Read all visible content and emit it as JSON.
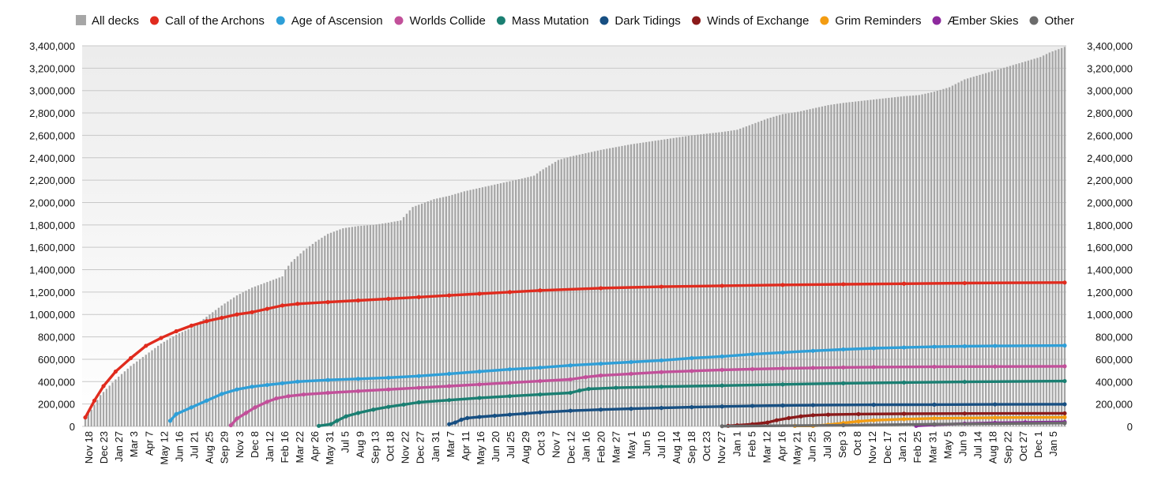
{
  "chart_data": {
    "type": "bar",
    "x_ticks": [
      "Nov 18",
      "Dec 23",
      "Jan 27",
      "Mar 3",
      "Apr 7",
      "May 12",
      "Jun 16",
      "Jul 21",
      "Aug 25",
      "Sep 29",
      "Nov 3",
      "Dec 8",
      "Jan 12",
      "Feb 16",
      "Mar 22",
      "Apr 26",
      "May 31",
      "Jul 5",
      "Aug 9",
      "Sep 13",
      "Oct 18",
      "Nov 22",
      "Dec 27",
      "Jan 31",
      "Mar 7",
      "Apr 11",
      "May 16",
      "Jun 20",
      "Jul 25",
      "Aug 29",
      "Oct 3",
      "Nov 7",
      "Dec 12",
      "Jan 16",
      "Feb 20",
      "Mar 27",
      "May 1",
      "Jun 5",
      "Jul 10",
      "Aug 14",
      "Sep 18",
      "Oct 23",
      "Nov 27",
      "Jan 1",
      "Feb 5",
      "Mar 12",
      "Apr 16",
      "May 21",
      "Jun 25",
      "Jul 30",
      "Sep 3",
      "Oct 8",
      "Nov 12",
      "Dec 17",
      "Jan 21",
      "Feb 25",
      "Mar 31",
      "May 5",
      "Jun 9",
      "Jul 14",
      "Aug 18",
      "Sep 22",
      "Oct 27",
      "Dec 1",
      "Jan 5"
    ],
    "y_ticks": [
      "0",
      "200,000",
      "400,000",
      "600,000",
      "800,000",
      "1,000,000",
      "1,200,000",
      "1,400,000",
      "1,600,000",
      "1,800,000",
      "2,000,000",
      "2,200,000",
      "2,400,000",
      "2,600,000",
      "2,800,000",
      "3,000,000",
      "3,200,000",
      "3,400,000"
    ],
    "ylim": [
      0,
      3400000
    ],
    "x_week_range": [
      0,
      323
    ],
    "grid": true,
    "legend_position": "top",
    "series": [
      {
        "name": "All decks",
        "kind": "bar",
        "color": "#a6a6a6",
        "points": [
          [
            0,
            80000
          ],
          [
            2,
            150000
          ],
          [
            5,
            280000
          ],
          [
            10,
            420000
          ],
          [
            15,
            540000
          ],
          [
            20,
            640000
          ],
          [
            25,
            740000
          ],
          [
            30,
            820000
          ],
          [
            35,
            880000
          ],
          [
            40,
            980000
          ],
          [
            45,
            1080000
          ],
          [
            50,
            1170000
          ],
          [
            55,
            1240000
          ],
          [
            60,
            1290000
          ],
          [
            65,
            1340000
          ],
          [
            66,
            1400000
          ],
          [
            68,
            1470000
          ],
          [
            72,
            1570000
          ],
          [
            76,
            1650000
          ],
          [
            80,
            1720000
          ],
          [
            85,
            1770000
          ],
          [
            90,
            1790000
          ],
          [
            95,
            1800000
          ],
          [
            100,
            1820000
          ],
          [
            104,
            1840000
          ],
          [
            106,
            1900000
          ],
          [
            108,
            1960000
          ],
          [
            112,
            2000000
          ],
          [
            115,
            2030000
          ],
          [
            120,
            2060000
          ],
          [
            125,
            2100000
          ],
          [
            130,
            2130000
          ],
          [
            135,
            2160000
          ],
          [
            140,
            2190000
          ],
          [
            145,
            2220000
          ],
          [
            148,
            2240000
          ],
          [
            150,
            2280000
          ],
          [
            153,
            2330000
          ],
          [
            156,
            2380000
          ],
          [
            160,
            2410000
          ],
          [
            165,
            2440000
          ],
          [
            170,
            2470000
          ],
          [
            180,
            2520000
          ],
          [
            190,
            2560000
          ],
          [
            200,
            2600000
          ],
          [
            210,
            2630000
          ],
          [
            215,
            2650000
          ],
          [
            220,
            2700000
          ],
          [
            225,
            2750000
          ],
          [
            230,
            2790000
          ],
          [
            235,
            2810000
          ],
          [
            240,
            2840000
          ],
          [
            245,
            2870000
          ],
          [
            250,
            2890000
          ],
          [
            260,
            2920000
          ],
          [
            270,
            2950000
          ],
          [
            275,
            2960000
          ],
          [
            280,
            2990000
          ],
          [
            285,
            3030000
          ],
          [
            290,
            3100000
          ],
          [
            295,
            3140000
          ],
          [
            300,
            3180000
          ],
          [
            305,
            3220000
          ],
          [
            310,
            3260000
          ],
          [
            315,
            3300000
          ],
          [
            318,
            3340000
          ],
          [
            323,
            3390000
          ]
        ]
      },
      {
        "name": "Call of the Archons",
        "kind": "line",
        "color": "#e02b1e",
        "points": [
          [
            0,
            80000
          ],
          [
            3,
            230000
          ],
          [
            6,
            360000
          ],
          [
            10,
            490000
          ],
          [
            15,
            610000
          ],
          [
            20,
            720000
          ],
          [
            25,
            790000
          ],
          [
            30,
            850000
          ],
          [
            35,
            900000
          ],
          [
            40,
            940000
          ],
          [
            45,
            970000
          ],
          [
            50,
            1000000
          ],
          [
            55,
            1020000
          ],
          [
            60,
            1050000
          ],
          [
            65,
            1080000
          ],
          [
            70,
            1095000
          ],
          [
            80,
            1110000
          ],
          [
            90,
            1125000
          ],
          [
            100,
            1140000
          ],
          [
            110,
            1155000
          ],
          [
            120,
            1170000
          ],
          [
            130,
            1185000
          ],
          [
            140,
            1200000
          ],
          [
            150,
            1215000
          ],
          [
            170,
            1235000
          ],
          [
            190,
            1248000
          ],
          [
            210,
            1256000
          ],
          [
            230,
            1264000
          ],
          [
            250,
            1270000
          ],
          [
            270,
            1275000
          ],
          [
            290,
            1280000
          ],
          [
            323,
            1285000
          ]
        ]
      },
      {
        "name": "Age of Ascension",
        "kind": "line",
        "color": "#2e9fd8",
        "points": [
          [
            28,
            50000
          ],
          [
            30,
            110000
          ],
          [
            35,
            170000
          ],
          [
            40,
            230000
          ],
          [
            45,
            290000
          ],
          [
            50,
            330000
          ],
          [
            55,
            355000
          ],
          [
            60,
            370000
          ],
          [
            65,
            385000
          ],
          [
            70,
            400000
          ],
          [
            80,
            415000
          ],
          [
            90,
            425000
          ],
          [
            100,
            435000
          ],
          [
            110,
            450000
          ],
          [
            120,
            470000
          ],
          [
            130,
            490000
          ],
          [
            140,
            510000
          ],
          [
            150,
            525000
          ],
          [
            160,
            545000
          ],
          [
            170,
            560000
          ],
          [
            180,
            575000
          ],
          [
            190,
            590000
          ],
          [
            200,
            610000
          ],
          [
            210,
            625000
          ],
          [
            220,
            645000
          ],
          [
            230,
            660000
          ],
          [
            240,
            675000
          ],
          [
            250,
            688000
          ],
          [
            260,
            698000
          ],
          [
            270,
            705000
          ],
          [
            280,
            712000
          ],
          [
            290,
            716000
          ],
          [
            300,
            719000
          ],
          [
            323,
            722000
          ]
        ]
      },
      {
        "name": "Worlds Collide",
        "kind": "line",
        "color": "#c2509a",
        "points": [
          [
            48,
            10000
          ],
          [
            50,
            70000
          ],
          [
            53,
            120000
          ],
          [
            56,
            170000
          ],
          [
            60,
            220000
          ],
          [
            63,
            250000
          ],
          [
            67,
            270000
          ],
          [
            72,
            285000
          ],
          [
            80,
            300000
          ],
          [
            90,
            315000
          ],
          [
            100,
            330000
          ],
          [
            110,
            345000
          ],
          [
            120,
            360000
          ],
          [
            130,
            375000
          ],
          [
            140,
            390000
          ],
          [
            150,
            405000
          ],
          [
            160,
            420000
          ],
          [
            165,
            440000
          ],
          [
            170,
            455000
          ],
          [
            180,
            470000
          ],
          [
            190,
            485000
          ],
          [
            200,
            495000
          ],
          [
            210,
            505000
          ],
          [
            220,
            512000
          ],
          [
            230,
            518000
          ],
          [
            240,
            523000
          ],
          [
            250,
            527000
          ],
          [
            260,
            530000
          ],
          [
            280,
            533000
          ],
          [
            300,
            535000
          ],
          [
            323,
            537000
          ]
        ]
      },
      {
        "name": "Mass Mutation",
        "kind": "line",
        "color": "#1a7f72",
        "points": [
          [
            77,
            5000
          ],
          [
            81,
            20000
          ],
          [
            83,
            50000
          ],
          [
            86,
            90000
          ],
          [
            90,
            120000
          ],
          [
            95,
            150000
          ],
          [
            100,
            175000
          ],
          [
            105,
            195000
          ],
          [
            110,
            215000
          ],
          [
            120,
            235000
          ],
          [
            130,
            255000
          ],
          [
            140,
            270000
          ],
          [
            150,
            285000
          ],
          [
            160,
            300000
          ],
          [
            163,
            320000
          ],
          [
            166,
            335000
          ],
          [
            175,
            345000
          ],
          [
            190,
            355000
          ],
          [
            210,
            365000
          ],
          [
            230,
            375000
          ],
          [
            250,
            385000
          ],
          [
            270,
            392000
          ],
          [
            290,
            398000
          ],
          [
            323,
            405000
          ]
        ]
      },
      {
        "name": "Dark Tidings",
        "kind": "line",
        "color": "#174f82",
        "points": [
          [
            120,
            20000
          ],
          [
            122,
            35000
          ],
          [
            124,
            60000
          ],
          [
            126,
            75000
          ],
          [
            130,
            85000
          ],
          [
            135,
            95000
          ],
          [
            140,
            105000
          ],
          [
            145,
            115000
          ],
          [
            150,
            125000
          ],
          [
            160,
            140000
          ],
          [
            170,
            150000
          ],
          [
            180,
            158000
          ],
          [
            190,
            165000
          ],
          [
            200,
            172000
          ],
          [
            210,
            178000
          ],
          [
            220,
            183000
          ],
          [
            230,
            187000
          ],
          [
            240,
            190000
          ],
          [
            260,
            193000
          ],
          [
            280,
            195000
          ],
          [
            300,
            197000
          ],
          [
            323,
            198000
          ]
        ]
      },
      {
        "name": "Winds of Exchange",
        "kind": "line",
        "color": "#8b1a1a",
        "points": [
          [
            212,
            5000
          ],
          [
            215,
            10000
          ],
          [
            220,
            20000
          ],
          [
            225,
            35000
          ],
          [
            228,
            55000
          ],
          [
            232,
            75000
          ],
          [
            236,
            90000
          ],
          [
            240,
            100000
          ],
          [
            245,
            105000
          ],
          [
            255,
            110000
          ],
          [
            270,
            113000
          ],
          [
            290,
            115000
          ],
          [
            323,
            117000
          ]
        ]
      },
      {
        "name": "Grim Reminders",
        "kind": "line",
        "color": "#f39c12",
        "points": [
          [
            234,
            5000
          ],
          [
            240,
            5000
          ],
          [
            245,
            15000
          ],
          [
            250,
            30000
          ],
          [
            255,
            45000
          ],
          [
            260,
            55000
          ],
          [
            270,
            65000
          ],
          [
            280,
            72000
          ],
          [
            300,
            78000
          ],
          [
            323,
            82000
          ]
        ]
      },
      {
        "name": "Æmber Skies",
        "kind": "line",
        "color": "#8e2a9e",
        "points": [
          [
            274,
            5000
          ],
          [
            280,
            15000
          ],
          [
            290,
            25000
          ],
          [
            300,
            32000
          ],
          [
            310,
            36000
          ],
          [
            323,
            40000
          ]
        ]
      },
      {
        "name": "Other",
        "kind": "line",
        "color": "#6b6b6b",
        "points": [
          [
            210,
            2000
          ],
          [
            250,
            10000
          ],
          [
            280,
            20000
          ],
          [
            323,
            30000
          ]
        ]
      }
    ]
  }
}
